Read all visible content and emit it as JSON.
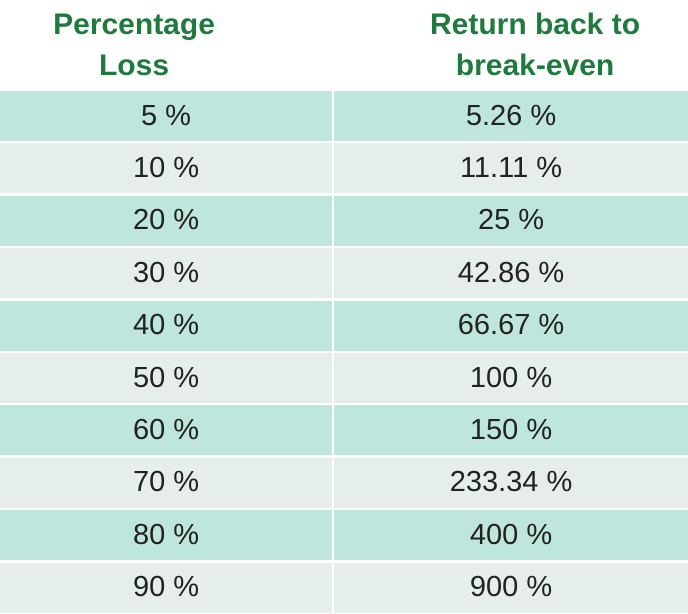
{
  "table": {
    "header": [
      "Percentage\nLoss",
      "Return back to\nbreak-even"
    ],
    "rows": [
      [
        "5 %",
        "5.26 %"
      ],
      [
        "10 %",
        "11.11 %"
      ],
      [
        "20 %",
        "25 %"
      ],
      [
        "30 %",
        "42.86 %"
      ],
      [
        "40 %",
        "66.67 %"
      ],
      [
        "50 %",
        "100 %"
      ],
      [
        "60 %",
        "150 %"
      ],
      [
        "70 %",
        "233.34 %"
      ],
      [
        "80 %",
        "400 %"
      ],
      [
        "90 %",
        "900 %"
      ]
    ]
  }
}
